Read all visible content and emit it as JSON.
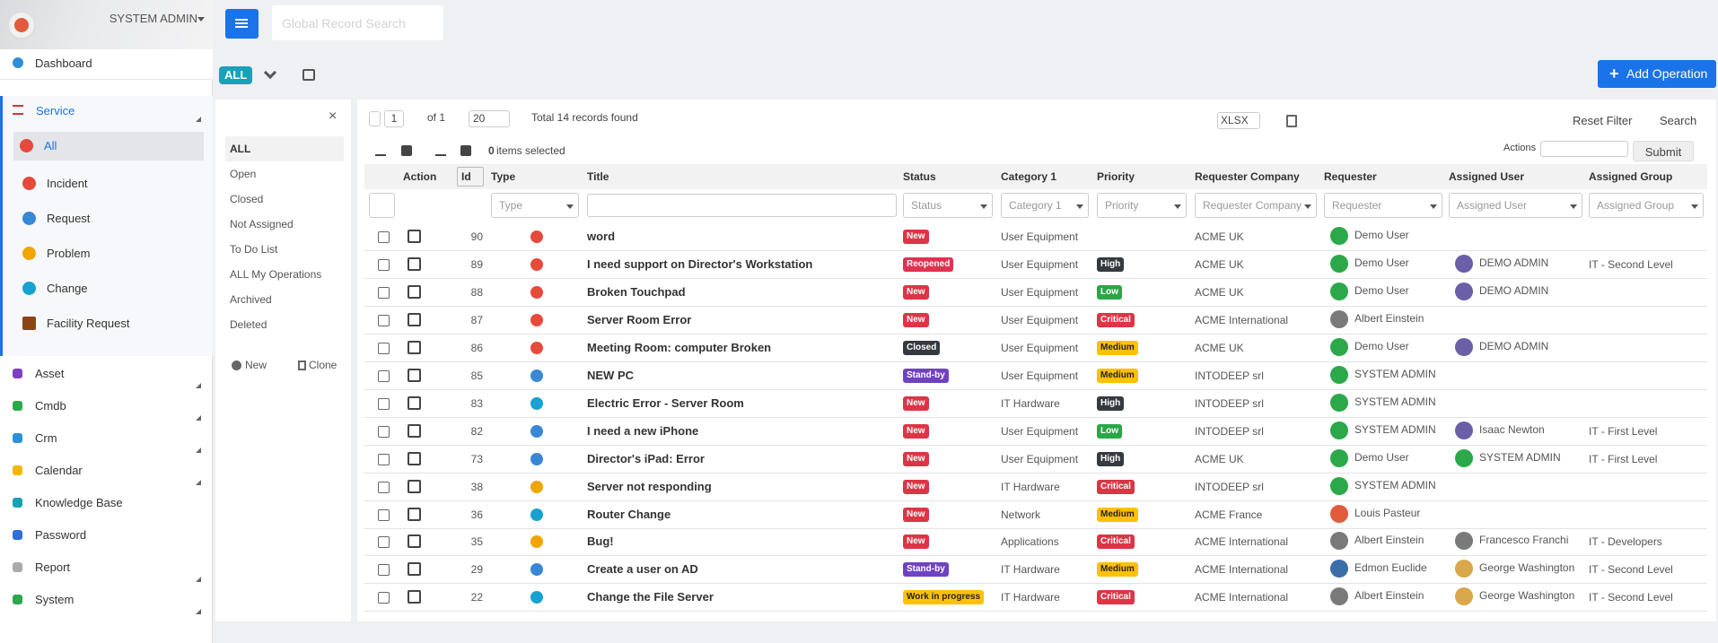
{
  "header": {
    "user": "SYSTEM ADMIN",
    "search_placeholder": "Global Record Search"
  },
  "nav": {
    "top": "Dashboard",
    "service": "Service",
    "service_items": [
      "All",
      "Incident",
      "Request",
      "Problem",
      "Change",
      "Facility Request"
    ],
    "others": [
      "Asset",
      "Cmdb",
      "Crm",
      "Calendar",
      "Knowledge Base",
      "Password",
      "Report",
      "System"
    ]
  },
  "toolbar": {
    "view": "ALL",
    "add": "Add Operation"
  },
  "views": {
    "items": [
      "ALL",
      "Open",
      "Closed",
      "Not Assigned",
      "To Do List",
      "ALL My Operations",
      "Archived",
      "Deleted"
    ],
    "new": "New",
    "clone": "Clone"
  },
  "pager": {
    "page": "1",
    "of": "of 1",
    "size": "20",
    "total": "Total 14 records found",
    "export": "XLSX",
    "reset": "Reset Filter",
    "search": "Search",
    "selected_count": 0,
    "selected_text": "items selected",
    "actions": "Actions",
    "submit": "Submit"
  },
  "table": {
    "columns": [
      "Action",
      "Id",
      "Type",
      "Title",
      "Status",
      "Category 1",
      "Priority",
      "Requester Company",
      "Requester",
      "Assigned User",
      "Assigned Group"
    ],
    "filters": [
      "Type",
      "Status",
      "Category 1",
      "Priority",
      "Requester Company",
      "Requester",
      "Assigned User",
      "Assigned Group"
    ],
    "rows": [
      {
        "id": 90,
        "title": "word",
        "status": "New",
        "status_color": "#dc3545",
        "category": "User Equipment",
        "company": "ACME UK",
        "requester": "Demo User"
      },
      {
        "id": 89,
        "title": "I need support on Director's Workstation",
        "status": "Reopened",
        "status_color": "#e0314f",
        "category": "User Equipment",
        "priority": "High",
        "priority_color": "#343a40",
        "company": "ACME UK",
        "requester": "Demo User",
        "assigned_user": "DEMO ADMIN",
        "assigned_group": "IT - Second Level"
      },
      {
        "id": 88,
        "title": "Broken Touchpad",
        "status": "New",
        "status_color": "#dc3545",
        "category": "User Equipment",
        "priority": "Low",
        "priority_color": "#28a745",
        "company": "ACME UK",
        "requester": "Demo User",
        "assigned_user": "DEMO ADMIN"
      },
      {
        "id": 87,
        "title": "Server Room Error",
        "status": "New",
        "status_color": "#dc3545",
        "category": "User Equipment",
        "priority": "Critical",
        "priority_color": "#dc3545",
        "company": "ACME International",
        "requester": "Albert Einstein"
      },
      {
        "id": 86,
        "title": "Meeting Room: computer Broken",
        "status": "Closed",
        "status_color": "#343a40",
        "category": "User Equipment",
        "priority": "Medium",
        "priority_color": "#ffc107",
        "company": "ACME UK",
        "requester": "Demo User",
        "assigned_user": "DEMO ADMIN"
      },
      {
        "id": 85,
        "title": "NEW PC",
        "status": "Stand-by",
        "status_color": "#6f42c1",
        "category": "User Equipment",
        "priority": "Medium",
        "priority_color": "#ffc107",
        "company": "INTODEEP srl",
        "requester": "SYSTEM ADMIN"
      },
      {
        "id": 83,
        "title": "Electric Error - Server Room",
        "status": "New",
        "status_color": "#dc3545",
        "category": "IT Hardware",
        "priority": "High",
        "priority_color": "#343a40",
        "company": "INTODEEP srl",
        "requester": "SYSTEM ADMIN"
      },
      {
        "id": 82,
        "title": "I need a new iPhone",
        "status": "New",
        "status_color": "#dc3545",
        "category": "User Equipment",
        "priority": "Low",
        "priority_color": "#28a745",
        "company": "INTODEEP srl",
        "requester": "SYSTEM ADMIN",
        "assigned_user": "Isaac Newton",
        "assigned_group": "IT - First Level"
      },
      {
        "id": 73,
        "title": "Director's iPad: Error",
        "status": "New",
        "status_color": "#dc3545",
        "category": "User Equipment",
        "priority": "High",
        "priority_color": "#343a40",
        "company": "ACME UK",
        "requester": "Demo User",
        "assigned_user": "SYSTEM ADMIN",
        "assigned_group": "IT - First Level"
      },
      {
        "id": 38,
        "title": "Server not responding",
        "status": "New",
        "status_color": "#dc3545",
        "category": "IT Hardware",
        "priority": "Critical",
        "priority_color": "#dc3545",
        "company": "INTODEEP srl",
        "requester": "SYSTEM ADMIN"
      },
      {
        "id": 36,
        "title": "Router Change",
        "status": "New",
        "status_color": "#dc3545",
        "category": "Network",
        "priority": "Medium",
        "priority_color": "#ffc107",
        "company": "ACME France",
        "requester": "Louis Pasteur"
      },
      {
        "id": 35,
        "title": "Bug!",
        "status": "New",
        "status_color": "#dc3545",
        "category": "Applications",
        "priority": "Critical",
        "priority_color": "#dc3545",
        "company": "ACME International",
        "requester": "Albert Einstein",
        "assigned_user": "Francesco Franchi",
        "assigned_group": "IT - Developers"
      },
      {
        "id": 29,
        "title": "Create a user on AD",
        "status": "Stand-by",
        "status_color": "#6f42c1",
        "category": "IT Hardware",
        "priority": "Medium",
        "priority_color": "#ffc107",
        "company": "ACME International",
        "requester": "Edmon Euclide",
        "assigned_user": "George Washington",
        "assigned_group": "IT - Second Level"
      },
      {
        "id": 22,
        "title": "Change the File Server",
        "status": "Work in progress",
        "status_color": "#ffc107",
        "category": "IT Hardware",
        "priority": "Critical",
        "priority_color": "#dc3545",
        "company": "ACME International",
        "requester": "Albert Einstein",
        "assigned_user": "George Washington",
        "assigned_group": "IT - Second Level"
      }
    ]
  }
}
